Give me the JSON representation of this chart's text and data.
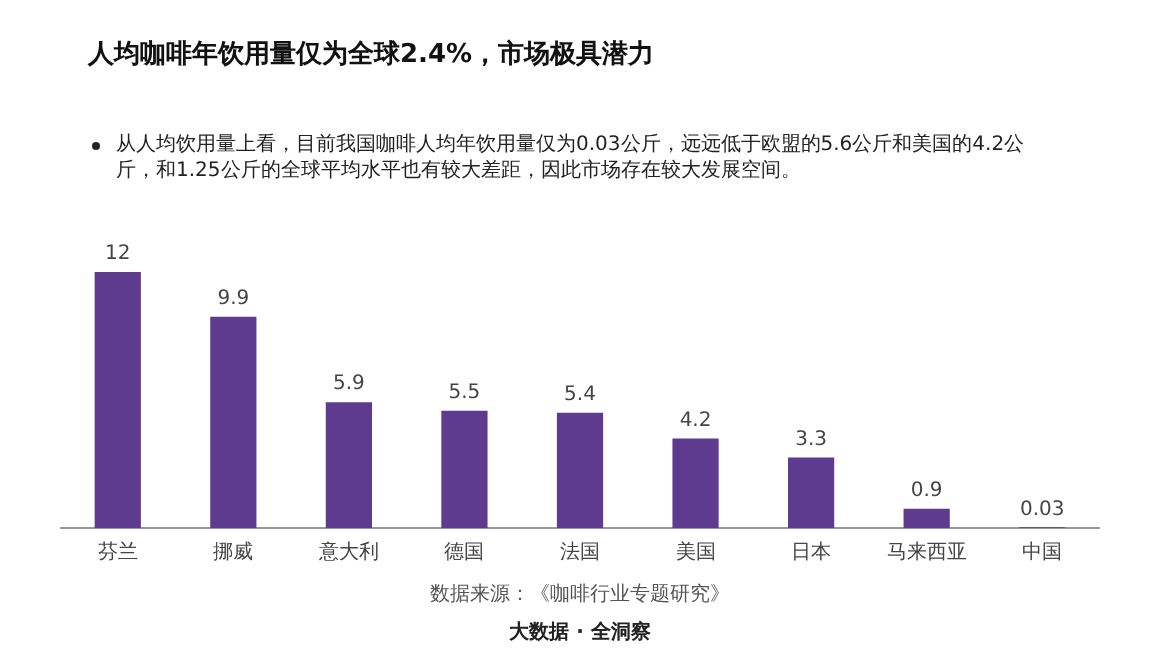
{
  "chart_data": {
    "type": "bar",
    "title": "人均咖啡年饮用量仅为全球2.4%，市场极具潜力",
    "subtitle": "从人均饮用量上看，目前我国咖啡人均年饮用量仅为0.03公斤，远远低于欧盟的5.6公斤和美国的4.2公斤，和1.25公斤的全球平均水平也有较大差距，因此市场存在较大发展空间。",
    "categories": [
      "芬兰",
      "挪威",
      "意大利",
      "德国",
      "法国",
      "美国",
      "日本",
      "马来西亚",
      "中国"
    ],
    "values": [
      12,
      9.9,
      5.9,
      5.5,
      5.4,
      4.2,
      3.3,
      0.9,
      0.03
    ],
    "color": "#5e3b8e",
    "data_labels": true,
    "grid": false,
    "legend": false,
    "annotations": [
      "数据来源：《咖啡行业专题研究》",
      "大数据 · 全洞察"
    ]
  }
}
